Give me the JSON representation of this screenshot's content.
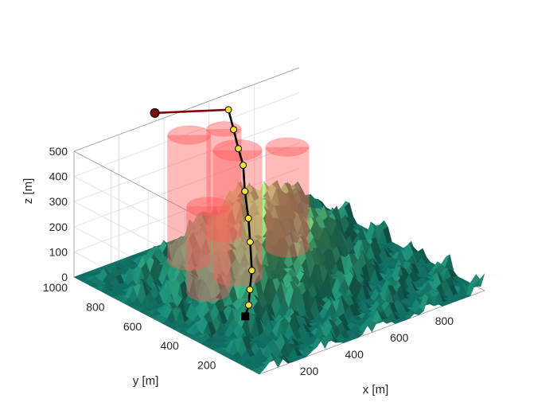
{
  "chart_data": {
    "type": "surface3d",
    "title": "",
    "xlabel": "x [m]",
    "ylabel": "y [m]",
    "zlabel": "z [m]",
    "xlim": [
      0,
      1000
    ],
    "ylim": [
      0,
      1000
    ],
    "zlim": [
      0,
      500
    ],
    "x_ticks": [
      "200",
      "400",
      "600",
      "800"
    ],
    "x_tick_values": [
      200,
      400,
      600,
      800
    ],
    "y_ticks": [
      "200",
      "400",
      "600",
      "800",
      "1000"
    ],
    "y_tick_values": [
      200,
      400,
      600,
      800,
      1000
    ],
    "z_ticks": [
      "0",
      "100",
      "200",
      "300",
      "400",
      "500"
    ],
    "z_tick_values": [
      0,
      100,
      200,
      300,
      400,
      500
    ],
    "grid": true,
    "colormap": [
      "#0f6e62",
      "#3aa070",
      "#7cc46c",
      "#b2e089"
    ],
    "threat_color": "#ff5a5a",
    "path_color": "#000000",
    "waypoint_color": "#f2e33a",
    "threats": [
      {
        "x": 380,
        "y": 840,
        "r": 75,
        "h": 500
      },
      {
        "x": 430,
        "y": 640,
        "r": 85,
        "h": 500
      },
      {
        "x": 275,
        "y": 610,
        "r": 75,
        "h": 340
      },
      {
        "x": 600,
        "y": 920,
        "r": 60,
        "h": 420
      },
      {
        "x": 700,
        "y": 700,
        "r": 75,
        "h": 400
      }
    ],
    "path": [
      {
        "x": 250,
        "y": 380,
        "z": 0
      },
      {
        "x": 290,
        "y": 410,
        "z": 20
      },
      {
        "x": 320,
        "y": 440,
        "z": 60
      },
      {
        "x": 370,
        "y": 490,
        "z": 100
      },
      {
        "x": 420,
        "y": 560,
        "z": 170
      },
      {
        "x": 470,
        "y": 630,
        "z": 220
      },
      {
        "x": 520,
        "y": 710,
        "z": 280
      },
      {
        "x": 570,
        "y": 780,
        "z": 340
      },
      {
        "x": 590,
        "y": 830,
        "z": 380
      },
      {
        "x": 610,
        "y": 880,
        "z": 430
      },
      {
        "x": 620,
        "y": 920,
        "z": 490
      },
      {
        "x": 400,
        "y": 1050,
        "z": 500
      }
    ],
    "start": {
      "x": 250,
      "y": 380,
      "z": 0
    },
    "goal": {
      "x": 400,
      "y": 1050,
      "z": 500
    }
  }
}
